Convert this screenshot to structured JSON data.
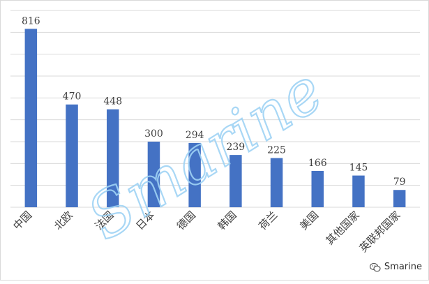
{
  "chart_data": {
    "type": "bar",
    "categories": [
      "中国",
      "北欧",
      "法国",
      "日本",
      "德国",
      "韩国",
      "荷兰",
      "美国",
      "其他国家",
      "英联邦国家"
    ],
    "values": [
      816,
      470,
      448,
      300,
      294,
      239,
      225,
      166,
      145,
      79
    ],
    "title": "",
    "xlabel": "",
    "ylabel": "",
    "ylim": [
      0,
      900
    ],
    "grid": true,
    "legend": "none",
    "bar_color": "#4472C4",
    "grid_color": "#d9d9d9"
  },
  "overlay": {
    "script_watermark": "Smarine",
    "script_color": "#9fd3f5",
    "brand": "Smarine",
    "brand_icon": "wechat-icon"
  }
}
